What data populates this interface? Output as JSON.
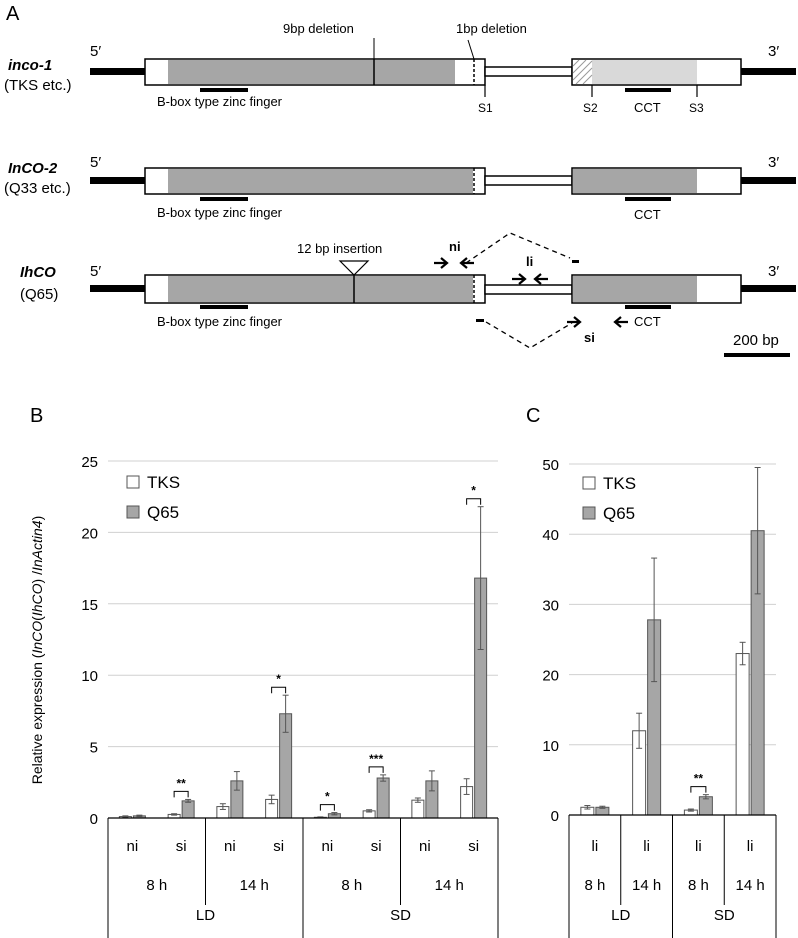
{
  "panels": {
    "a": "A",
    "b": "B",
    "c": "C"
  },
  "genes": [
    {
      "name": "inco-1",
      "accessions": "(TKS etc.)",
      "five": "5′",
      "three": "3′",
      "motifs": [
        "B-box type zinc finger",
        "CCT"
      ]
    },
    {
      "name": "InCO-2",
      "accessions": "(Q33 etc.)",
      "five": "5′",
      "three": "3′",
      "motifs": [
        "B-box type zinc finger",
        "CCT"
      ]
    },
    {
      "name": "IhCO",
      "accessions": "(Q65)",
      "five": "5′",
      "three": "3′",
      "motifs": [
        "B-box type zinc finger",
        "CCT"
      ]
    }
  ],
  "annotations": {
    "deletion9": "9bp deletion",
    "deletion1": "1bp deletion",
    "insertion12": "12 bp insertion",
    "sites": [
      "S1",
      "S2",
      "S3"
    ],
    "primers": {
      "ni": "ni",
      "li": "li",
      "si": "si"
    },
    "scale_bar": "200 bp"
  },
  "colors": {
    "exon_fill": "#a6a6a6",
    "exon_fill_light": "#d9d9d9",
    "tks_fill": "#ffffff",
    "q65_fill": "#a6a6a6",
    "grid": "#d0d0d0"
  },
  "chart_data": [
    {
      "type": "bar",
      "panel": "B",
      "ylabel_parts": [
        "Relative expression (",
        "InCO",
        "(",
        "IhCO",
        ") /",
        "InActin4",
        ")"
      ],
      "ylim": [
        0,
        25
      ],
      "yticks": [
        "0",
        "5",
        "10",
        "15",
        "20",
        "25"
      ],
      "grid": true,
      "legend_position": "top-left",
      "series": [
        {
          "name": "TKS",
          "values": [
            0.1,
            0.25,
            0.8,
            1.3,
            0.05,
            0.5,
            1.25,
            2.2
          ],
          "errors": [
            0.05,
            0.05,
            0.2,
            0.3,
            0.03,
            0.08,
            0.15,
            0.55
          ]
        },
        {
          "name": "Q65",
          "values": [
            0.15,
            1.2,
            2.6,
            7.3,
            0.3,
            2.8,
            2.6,
            16.8
          ],
          "errors": [
            0.05,
            0.1,
            0.65,
            1.3,
            0.08,
            0.22,
            0.7,
            5.0
          ]
        }
      ],
      "categories": [
        "ni",
        "si",
        "ni",
        "si",
        "ni",
        "si",
        "ni",
        "si"
      ],
      "time_groups": [
        "8 h",
        "14 h",
        "8 h",
        "14 h"
      ],
      "photoperiods": [
        "LD",
        "SD"
      ],
      "significance": [
        {
          "pair": 1,
          "label": "**"
        },
        {
          "pair": 3,
          "label": "*"
        },
        {
          "pair": 4,
          "label": "*"
        },
        {
          "pair": 5,
          "label": "***"
        },
        {
          "pair": 7,
          "label": "*"
        }
      ]
    },
    {
      "type": "bar",
      "panel": "C",
      "ylim": [
        0,
        50
      ],
      "yticks": [
        "0",
        "10",
        "20",
        "30",
        "40",
        "50"
      ],
      "grid": true,
      "legend_position": "top-left",
      "series": [
        {
          "name": "TKS",
          "values": [
            1.1,
            12.0,
            0.7,
            23.0
          ],
          "errors": [
            0.25,
            2.5,
            0.15,
            1.6
          ]
        },
        {
          "name": "Q65",
          "values": [
            1.1,
            27.8,
            2.6,
            40.5
          ],
          "errors": [
            0.15,
            8.8,
            0.3,
            9.0
          ]
        }
      ],
      "categories": [
        "li",
        "li",
        "li",
        "li"
      ],
      "time_groups": [
        "8 h",
        "14 h",
        "8 h",
        "14 h"
      ],
      "photoperiods": [
        "LD",
        "SD"
      ],
      "significance": [
        {
          "pair": 2,
          "label": "**"
        }
      ]
    }
  ]
}
